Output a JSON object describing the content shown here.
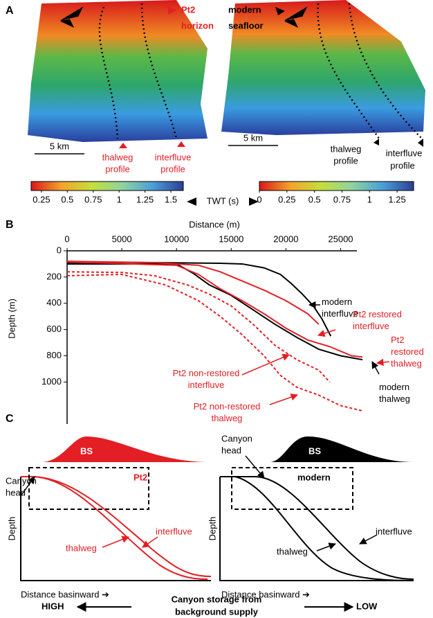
{
  "panel_a": {
    "label": "A",
    "left": {
      "title_1": "Pt2",
      "title_2": "horizon",
      "scale": "5 km",
      "thalweg_1": "thalweg",
      "thalweg_2": "profile",
      "interfluve_1": "interfluve",
      "interfluve_2": "profile"
    },
    "right": {
      "title_1": "modern",
      "title_2": "seafloor",
      "scale": "5 km",
      "thalweg_1": "thalweg",
      "thalweg_2": "profile",
      "interfluve_1": "interfluve",
      "interfluve_2": "profile"
    },
    "colorbar_label": "TWT (s)",
    "colorbars": [
      {
        "range": [
          0.15,
          1.62
        ],
        "ticks": [
          0.25,
          0.5,
          0.75,
          1,
          1.25,
          1.5
        ]
      },
      {
        "range": [
          0,
          1.4
        ],
        "ticks": [
          0,
          0.25,
          0.5,
          0.75,
          1,
          1.25
        ]
      }
    ]
  },
  "chart_data": {
    "type": "line",
    "label": "B",
    "x_label": "Distance (m)",
    "y_label": "Depth (m)",
    "xlim": [
      0,
      27500
    ],
    "ylim": [
      0,
      1320
    ],
    "y_inverted": true,
    "xticks": [
      0,
      5000,
      10000,
      15000,
      20000,
      25000
    ],
    "yticks": [
      0,
      200,
      400,
      600,
      800,
      1000
    ],
    "series": [
      {
        "name": "modern\ninterfluve",
        "color": "#000000",
        "dashed": false,
        "x": [
          0,
          5000,
          10000,
          14000,
          16000,
          18000,
          19500,
          20500,
          21500,
          22500,
          23300,
          24100
        ],
        "values": [
          90,
          88,
          92,
          95,
          100,
          130,
          180,
          250,
          330,
          420,
          520,
          650
        ]
      },
      {
        "name": "modern\nthalweg",
        "color": "#000000",
        "dashed": false,
        "x": [
          0,
          10000,
          11500,
          13000,
          15000,
          17000,
          19000,
          21000,
          23000,
          25000,
          27000
        ],
        "values": [
          100,
          100,
          170,
          260,
          340,
          450,
          560,
          660,
          750,
          800,
          830
        ]
      },
      {
        "name": "Pt2 restored\ninterfluve",
        "color": "#e31e24",
        "dashed": false,
        "x": [
          0,
          8000,
          12000,
          14000,
          16000,
          18000,
          20000,
          22000,
          23000
        ],
        "values": [
          80,
          90,
          110,
          160,
          230,
          300,
          380,
          480,
          560
        ]
      },
      {
        "name": "Pt2\nrestored\nthalweg",
        "color": "#e31e24",
        "dashed": false,
        "x": [
          0,
          10000,
          12000,
          14000,
          16000,
          18000,
          20000,
          22000,
          24000,
          26000,
          27000
        ],
        "values": [
          85,
          110,
          180,
          290,
          380,
          480,
          590,
          680,
          730,
          800,
          810
        ]
      },
      {
        "name": "Pt2 non-restored\ninterfluve",
        "color": "#e31e24",
        "dashed": true,
        "x": [
          0,
          5000,
          8000,
          11000,
          13000,
          15000,
          17000,
          19000,
          21000,
          23000,
          24000
        ],
        "values": [
          160,
          165,
          190,
          260,
          330,
          420,
          560,
          720,
          830,
          910,
          1000
        ]
      },
      {
        "name": "Pt2 non-restored\nthalweg",
        "color": "#e31e24",
        "dashed": true,
        "x": [
          0,
          5000,
          9000,
          12000,
          14000,
          16000,
          18000,
          19500,
          21000,
          23000,
          25000,
          27000
        ],
        "values": [
          190,
          180,
          260,
          380,
          500,
          640,
          800,
          950,
          1040,
          1100,
          1180,
          1220
        ]
      }
    ]
  },
  "panel_c": {
    "label": "C",
    "left": {
      "head_1": "Canyon",
      "head_2": "head",
      "bs": "BS",
      "title": "Pt2",
      "interfluve": "interfluve",
      "thalweg": "thalweg",
      "y_label": "Depth",
      "x_label": "Distance basinward ➔"
    },
    "right": {
      "head_1": "Canyon",
      "head_2": "head",
      "bs": "BS",
      "title": "modern",
      "interfluve": "interfluve",
      "thalweg": "thalweg",
      "y_label": "Depth",
      "x_label": "Distance basinward ➔"
    },
    "high": "HIGH",
    "low": "LOW",
    "storage_1": "Canyon storage from",
    "storage_2": "background supply"
  }
}
